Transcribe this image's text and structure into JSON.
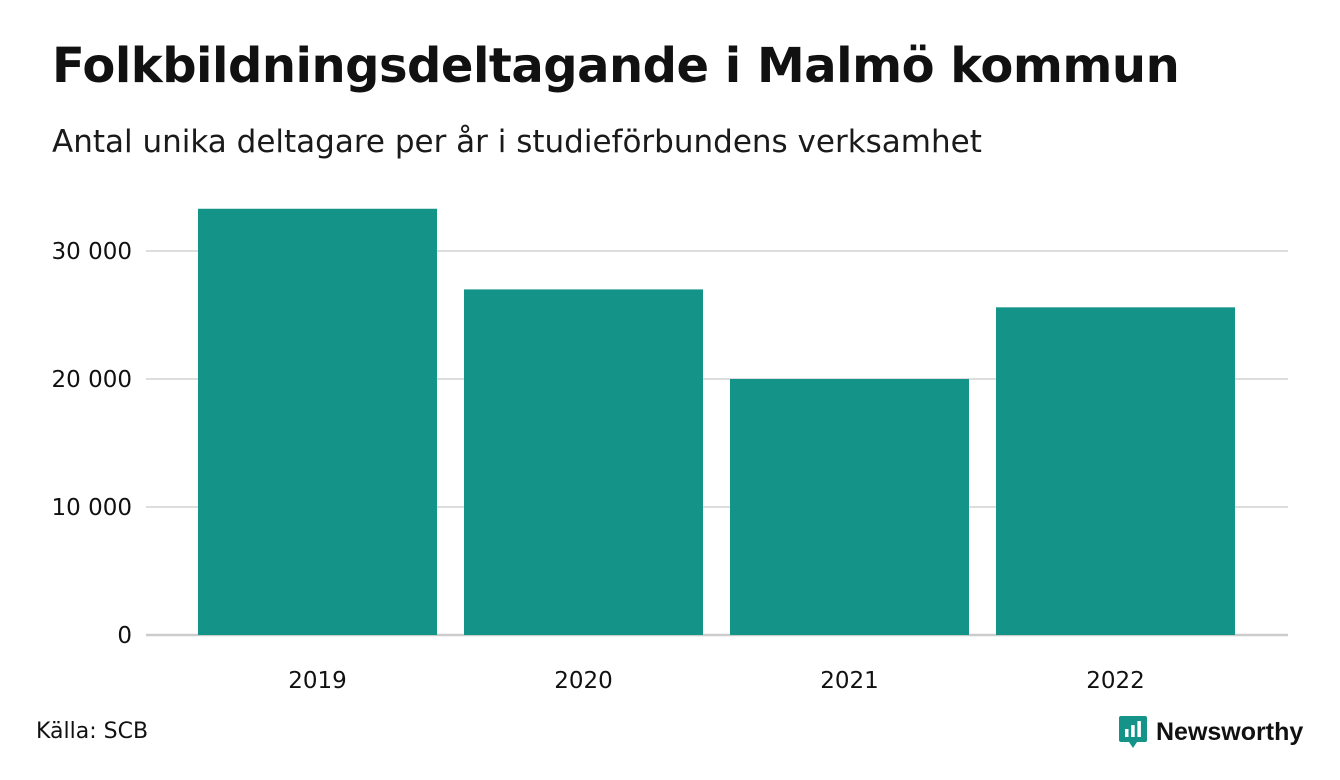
{
  "header": {
    "title": "Folkbildningsdeltagande i Malmö kommun",
    "subtitle": "Antal unika deltagare per år i studieförbundens verksamhet"
  },
  "footer": {
    "source": "Källa: SCB",
    "brand": "Newsworthy",
    "brand_icon": "newsworthy-logo-icon"
  },
  "colors": {
    "bar": "#149488",
    "grid": "#dddddd",
    "axis": "#cccccc",
    "text": "#111111"
  },
  "chart_data": {
    "type": "bar",
    "title": "Folkbildningsdeltagande i Malmö kommun",
    "subtitle": "Antal unika deltagare per år i studieförbundens verksamhet",
    "xlabel": "",
    "ylabel": "",
    "categories": [
      "2019",
      "2020",
      "2021",
      "2022"
    ],
    "values": [
      33300,
      27000,
      20000,
      25600
    ],
    "ylim": [
      0,
      34000
    ],
    "yticks": [
      0,
      10000,
      20000,
      30000
    ],
    "ytick_labels": [
      "0",
      "10 000",
      "20 000",
      "30 000"
    ],
    "grid": true,
    "legend": "none"
  }
}
